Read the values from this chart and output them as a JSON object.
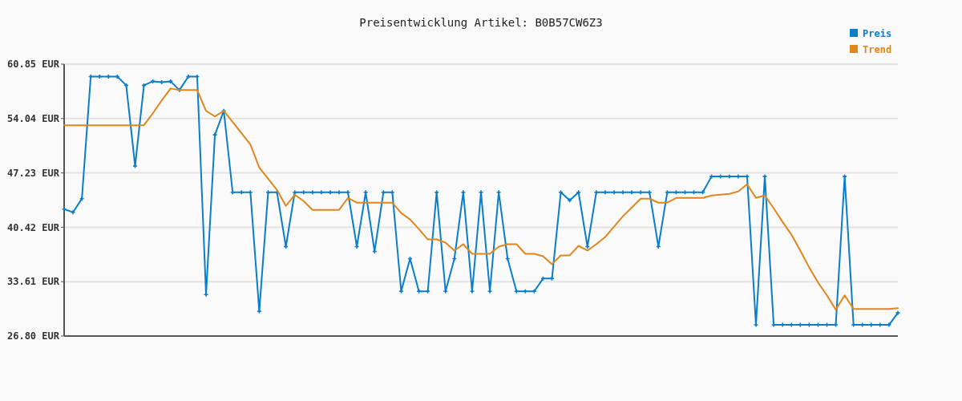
{
  "chart_data": {
    "type": "line",
    "title": "Preisentwicklung Artikel: B0B57CW6Z3",
    "categories": [
      null,
      null,
      null,
      null,
      null,
      null,
      null,
      null,
      null,
      null,
      null,
      null,
      null,
      null,
      null,
      null,
      null,
      null,
      null,
      null,
      null,
      null,
      null,
      null,
      null,
      null,
      null,
      null,
      null,
      null,
      null,
      null,
      null,
      null,
      null,
      null,
      null,
      null,
      null,
      null,
      null,
      null,
      null,
      null,
      null,
      null,
      null,
      null,
      null,
      null,
      null,
      null,
      null,
      null,
      null,
      null,
      null,
      null,
      null,
      null,
      null,
      null,
      null,
      null,
      null,
      null,
      null,
      null,
      null,
      null,
      null,
      null,
      null,
      null,
      null,
      null,
      null,
      null,
      null,
      null,
      null,
      null,
      null,
      null,
      null,
      null,
      null,
      null,
      null,
      null,
      null,
      null,
      null,
      null,
      null
    ],
    "series": [
      {
        "name": "Preis",
        "color": "#0a7dcb",
        "marker": "cross",
        "values": [
          42.7,
          42.3,
          44.0,
          59.3,
          59.3,
          59.3,
          59.3,
          58.2,
          48.1,
          58.2,
          58.7,
          58.6,
          58.7,
          57.6,
          59.3,
          59.3,
          32.0,
          52.0,
          55.0,
          44.8,
          44.8,
          44.8,
          29.9,
          44.8,
          44.8,
          38.0,
          44.8,
          44.8,
          44.8,
          44.8,
          44.8,
          44.8,
          44.8,
          38.0,
          44.8,
          37.4,
          44.8,
          44.8,
          32.4,
          36.5,
          32.4,
          32.4,
          44.8,
          32.4,
          36.5,
          44.8,
          32.4,
          44.8,
          32.4,
          44.8,
          36.5,
          32.4,
          32.4,
          32.4,
          34.0,
          34.0,
          44.8,
          43.8,
          44.8,
          38.0,
          44.8,
          44.8,
          44.8,
          44.8,
          44.8,
          44.8,
          44.8,
          38.0,
          44.8,
          44.8,
          44.8,
          44.8,
          44.8,
          46.8,
          46.8,
          46.8,
          46.8,
          46.8,
          28.2,
          46.8,
          28.2,
          28.2,
          28.2,
          28.2,
          28.2,
          28.2,
          28.2,
          28.2,
          46.8,
          28.2,
          28.2,
          28.2,
          28.2,
          28.2,
          29.7
        ]
      },
      {
        "name": "Trend",
        "color": "#e0861c",
        "marker": "none",
        "values": [
          53.2,
          53.2,
          53.2,
          53.2,
          53.2,
          53.2,
          53.2,
          53.2,
          53.2,
          53.2,
          54.7,
          56.3,
          57.8,
          57.6,
          57.6,
          57.6,
          55.0,
          54.3,
          55.0,
          53.6,
          52.2,
          50.8,
          47.9,
          46.5,
          45.1,
          43.1,
          44.5,
          43.7,
          42.6,
          42.6,
          42.6,
          42.6,
          44.1,
          43.5,
          43.5,
          43.5,
          43.5,
          43.5,
          42.2,
          41.4,
          40.2,
          38.9,
          38.9,
          38.5,
          37.5,
          38.3,
          37.1,
          37.1,
          37.1,
          38.0,
          38.3,
          38.3,
          37.1,
          37.1,
          36.8,
          35.8,
          36.9,
          36.9,
          38.1,
          37.5,
          38.3,
          39.2,
          40.5,
          41.8,
          42.9,
          44.0,
          44.0,
          43.5,
          43.5,
          44.1,
          44.1,
          44.1,
          44.1,
          44.4,
          44.5,
          44.6,
          44.9,
          45.8,
          44.1,
          44.4,
          42.8,
          41.1,
          39.5,
          37.5,
          35.4,
          33.5,
          31.9,
          30.1,
          31.9,
          30.2,
          30.2,
          30.2,
          30.2,
          30.2,
          30.3
        ]
      }
    ],
    "ylim": [
      26.8,
      60.85
    ],
    "yticks": [
      {
        "value": 26.8,
        "label": "26.80 EUR"
      },
      {
        "value": 33.61,
        "label": "33.61 EUR"
      },
      {
        "value": 40.42,
        "label": "40.42 EUR"
      },
      {
        "value": 47.23,
        "label": "47.23 EUR"
      },
      {
        "value": 54.04,
        "label": "54.04 EUR"
      },
      {
        "value": 60.85,
        "label": "60.85 EUR"
      }
    ],
    "grid": "y",
    "legend": "top right",
    "line_style": "solid"
  }
}
